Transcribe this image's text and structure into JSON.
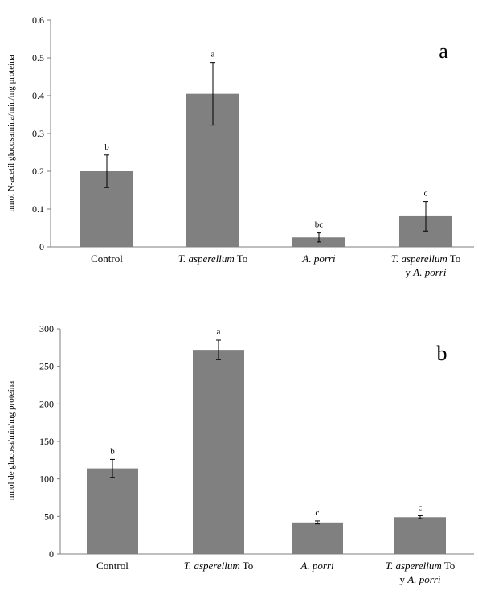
{
  "chart_data": [
    {
      "type": "bar",
      "panel_label": "a",
      "ylabel": "nmol N-acetil glucosamina/min/mg proteína",
      "ylim": [
        0,
        0.6
      ],
      "yticks": [
        "0",
        "0.1",
        "0.2",
        "0.3",
        "0.4",
        "0.5",
        "0.6"
      ],
      "categories": [
        [
          {
            "t": "Control",
            "i": false
          }
        ],
        [
          {
            "t": "T. asperellum",
            "i": true
          },
          {
            "t": " To",
            "i": false
          }
        ],
        [
          {
            "t": "A. porri",
            "i": true
          }
        ],
        [
          {
            "t": "T. asperellum",
            "i": true
          },
          {
            "t": " To",
            "i": false
          },
          {
            "br": true
          },
          {
            "t": "y ",
            "i": false
          },
          {
            "t": "A. porri",
            "i": true
          }
        ]
      ],
      "values": [
        0.2,
        0.405,
        0.025,
        0.081
      ],
      "errors": [
        0.043,
        0.083,
        0.012,
        0.039
      ],
      "significance": [
        "b",
        "a",
        "bc",
        "c"
      ],
      "bar_color": "#808080"
    },
    {
      "type": "bar",
      "panel_label": "b",
      "ylabel": "nmol de glucosa/min/mg proteína",
      "ylim": [
        0,
        300
      ],
      "yticks": [
        "0",
        "50",
        "100",
        "150",
        "200",
        "250",
        "300"
      ],
      "categories": [
        [
          {
            "t": "Control",
            "i": false
          }
        ],
        [
          {
            "t": "T. asperellum",
            "i": true
          },
          {
            "t": " To",
            "i": false
          }
        ],
        [
          {
            "t": "A. porri",
            "i": true
          }
        ],
        [
          {
            "t": "T. asperellum",
            "i": true
          },
          {
            "t": " To",
            "i": false
          },
          {
            "br": true
          },
          {
            "t": "y ",
            "i": false
          },
          {
            "t": "A. porri",
            "i": true
          }
        ]
      ],
      "values": [
        114,
        272,
        42,
        49
      ],
      "errors": [
        12,
        13,
        2,
        2
      ],
      "significance": [
        "b",
        "a",
        "c",
        "c"
      ],
      "bar_color": "#808080"
    }
  ]
}
